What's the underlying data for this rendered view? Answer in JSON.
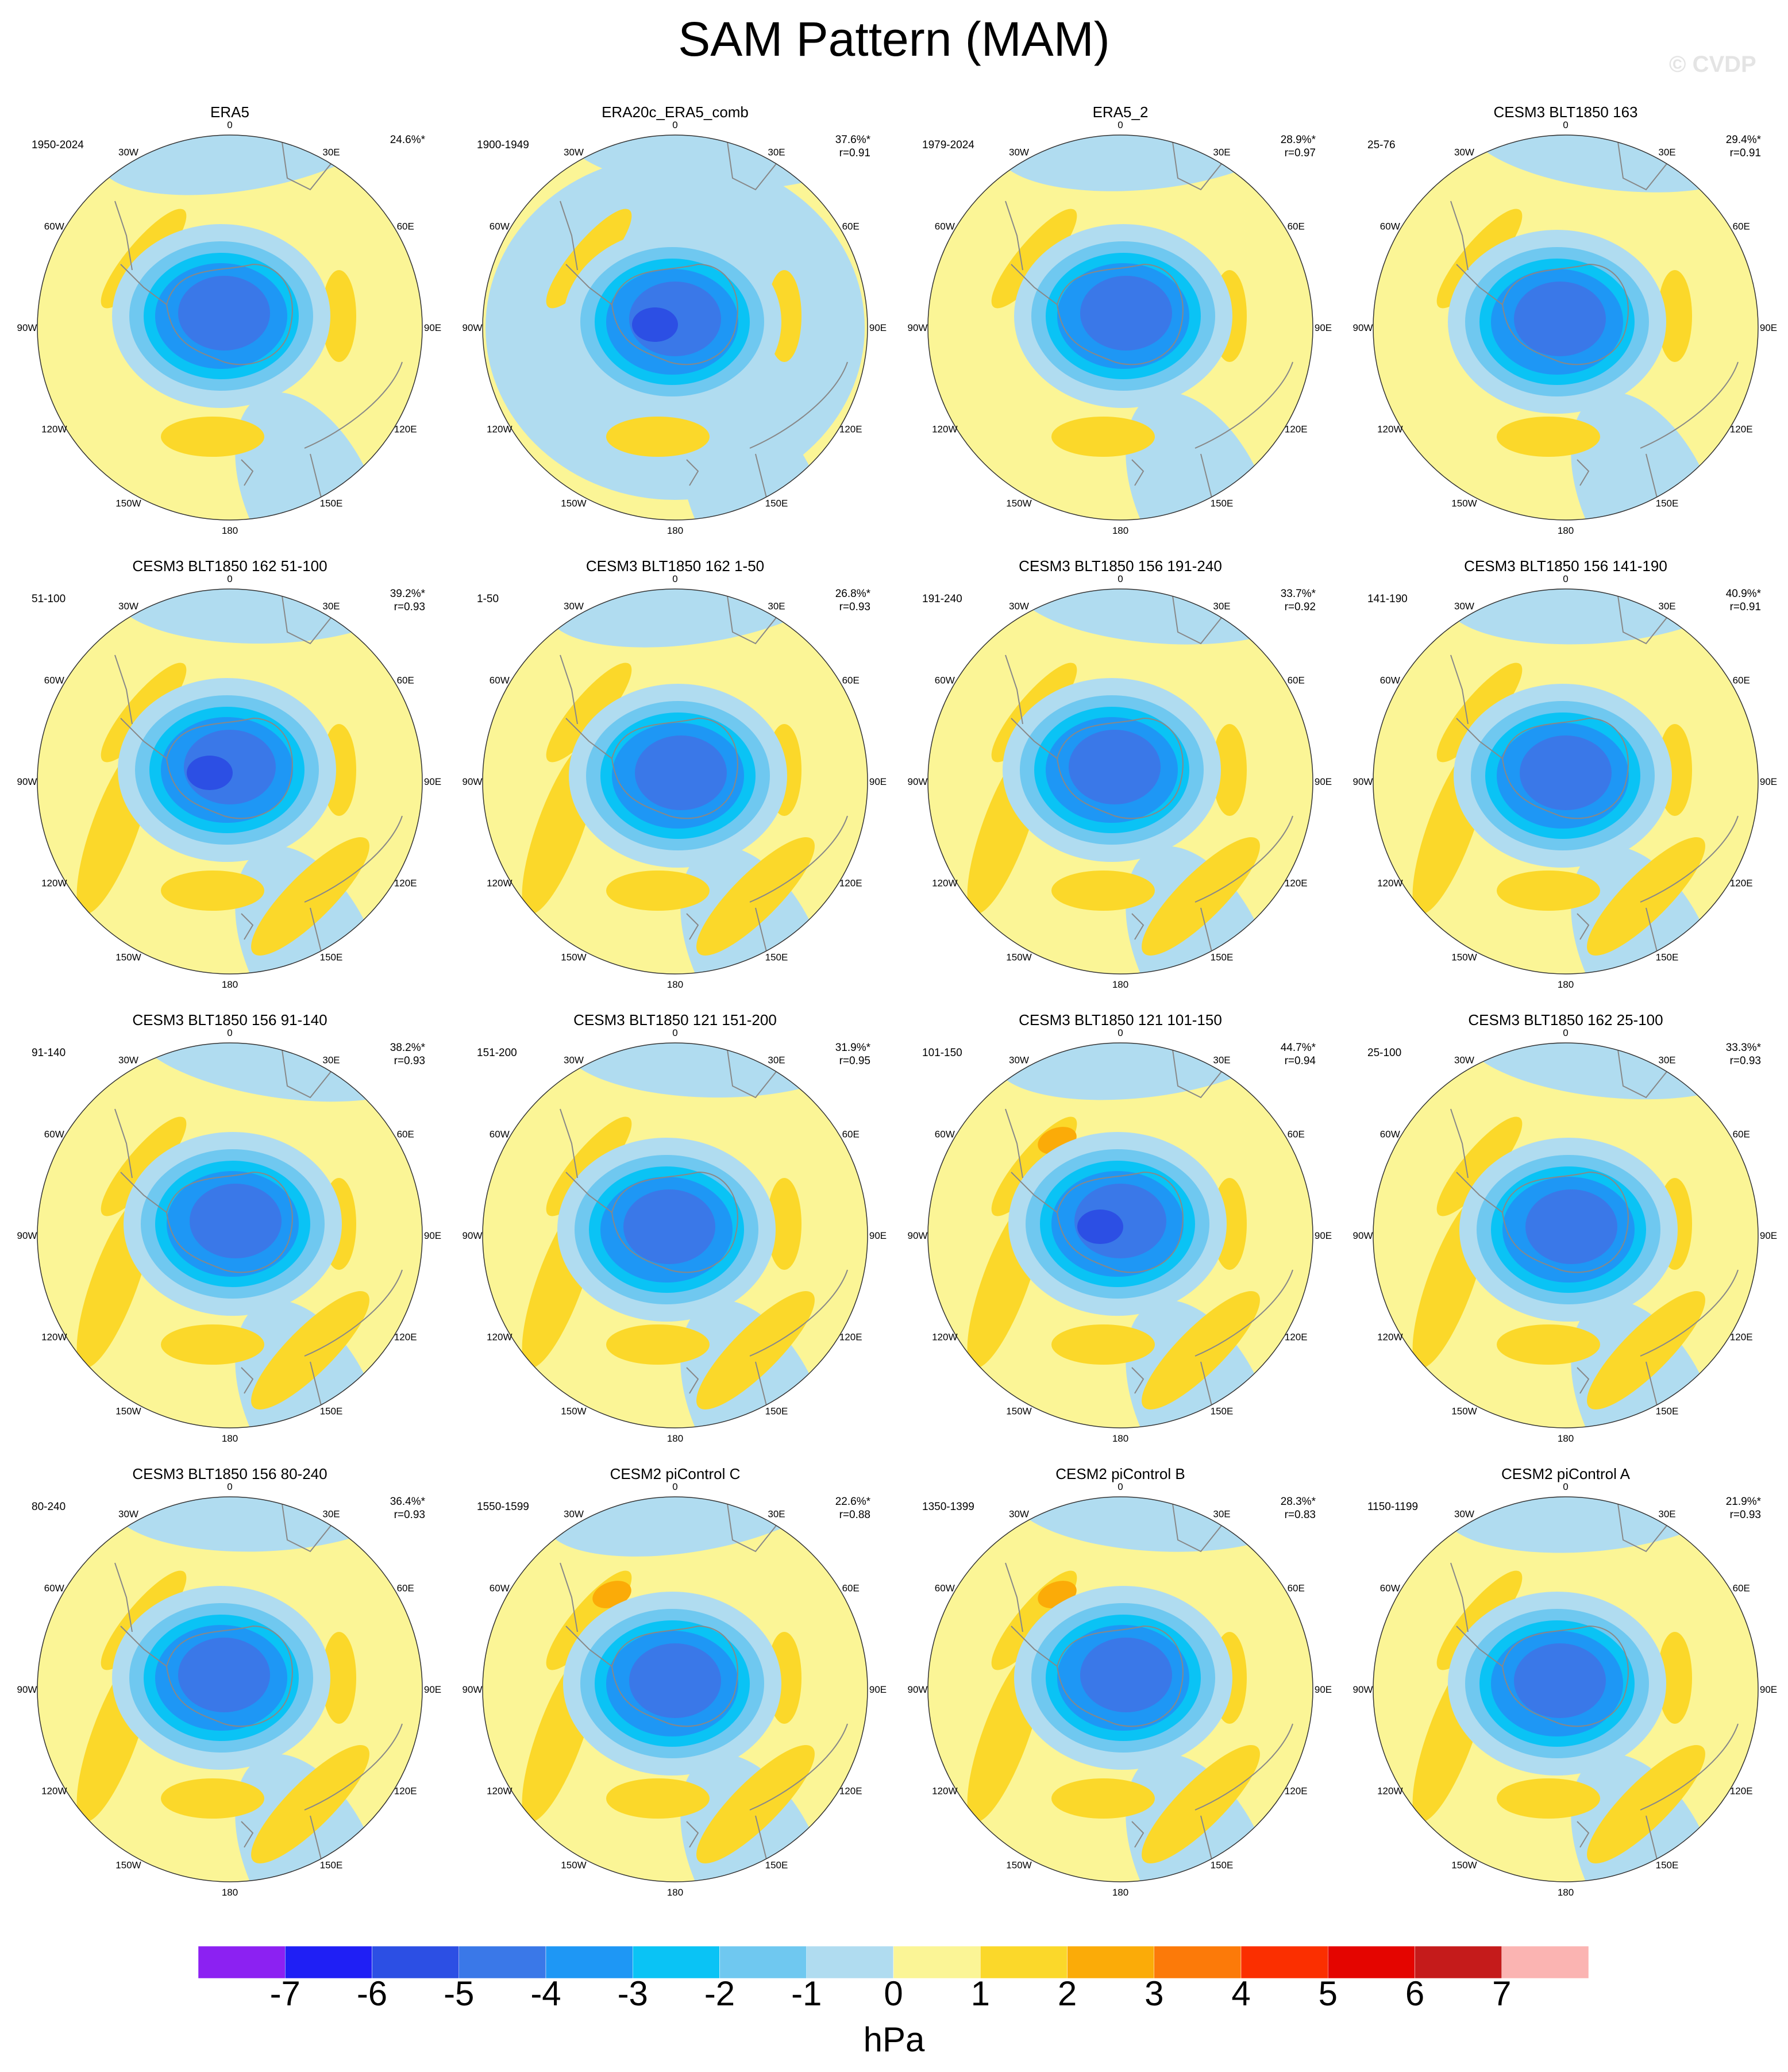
{
  "title": "SAM Pattern (MAM)",
  "watermark": "© CVDP",
  "colors": {
    "levels": [
      "#8c21f2",
      "#1f1ff5",
      "#2c4fe4",
      "#3a78e8",
      "#1e97f5",
      "#0ac3f5",
      "#6fc8f0",
      "#b0dcf0",
      "#fbf596",
      "#fbd82a",
      "#fbab08",
      "#fc7a09",
      "#fb2f00",
      "#e40500",
      "#c51b1b",
      "#fbb4b2"
    ],
    "coast": "#888888",
    "outline": "#333333"
  },
  "colorbar": {
    "ticks": [
      "-7",
      "-6",
      "-5",
      "-4",
      "-3",
      "-2",
      "-1",
      "0",
      "1",
      "2",
      "3",
      "4",
      "5",
      "6",
      "7"
    ],
    "units": "hPa"
  },
  "lon_labels": [
    "0",
    "30E",
    "60E",
    "90E",
    "120E",
    "150E",
    "180",
    "150W",
    "120W",
    "90W",
    "60W",
    "30W"
  ],
  "panels": [
    {
      "title": "ERA5",
      "years": "1950-2024",
      "pct": "24.6%*",
      "r": ""
    },
    {
      "title": "ERA20c_ERA5_comb",
      "years": "1900-1949",
      "pct": "37.6%*",
      "r": "r=0.91"
    },
    {
      "title": "ERA5_2",
      "years": "1979-2024",
      "pct": "28.9%*",
      "r": "r=0.97"
    },
    {
      "title": "CESM3 BLT1850 163",
      "years": "25-76",
      "pct": "29.4%*",
      "r": "r=0.91"
    },
    {
      "title": "CESM3 BLT1850 162 51-100",
      "years": "51-100",
      "pct": "39.2%*",
      "r": "r=0.93"
    },
    {
      "title": "CESM3 BLT1850 162 1-50",
      "years": "1-50",
      "pct": "26.8%*",
      "r": "r=0.93"
    },
    {
      "title": "CESM3 BLT1850 156 191-240",
      "years": "191-240",
      "pct": "33.7%*",
      "r": "r=0.92"
    },
    {
      "title": "CESM3 BLT1850 156 141-190",
      "years": "141-190",
      "pct": "40.9%*",
      "r": "r=0.91"
    },
    {
      "title": "CESM3 BLT1850 156 91-140",
      "years": "91-140",
      "pct": "38.2%*",
      "r": "r=0.93"
    },
    {
      "title": "CESM3 BLT1850 121 151-200",
      "years": "151-200",
      "pct": "31.9%*",
      "r": "r=0.95"
    },
    {
      "title": "CESM3 BLT1850 121 101-150",
      "years": "101-150",
      "pct": "44.7%*",
      "r": "r=0.94"
    },
    {
      "title": "CESM3 BLT1850 162 25-100",
      "years": "25-100",
      "pct": "33.3%*",
      "r": "r=0.93"
    },
    {
      "title": "CESM3 BLT1850 156 80-240",
      "years": "80-240",
      "pct": "36.4%*",
      "r": "r=0.93"
    },
    {
      "title": "CESM2 piControl C",
      "years": "1550-1599",
      "pct": "22.6%*",
      "r": "r=0.88"
    },
    {
      "title": "CESM2 piControl B",
      "years": "1350-1399",
      "pct": "28.3%*",
      "r": "r=0.83"
    },
    {
      "title": "CESM2 piControl A",
      "years": "1150-1199",
      "pct": "21.9%*",
      "r": "r=0.93"
    }
  ]
}
